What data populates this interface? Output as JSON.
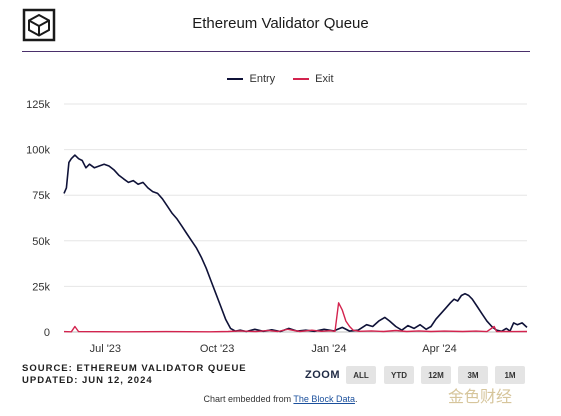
{
  "page": {
    "title": "Ethereum Validator Queue",
    "source_label": "SOURCE: ETHEREUM VALIDATOR QUEUE",
    "updated_label": "UPDATED: JUN 12, 2024",
    "zoom_label": "ZOOM",
    "zoom_buttons": [
      "ALL",
      "YTD",
      "12M",
      "3M",
      "1M"
    ],
    "footer_prefix": "Chart embedded from ",
    "footer_link": "The Block Data",
    "footer_suffix": ".",
    "watermark": "金色财经",
    "logo_icon": "the-block-cube-logo",
    "colors": {
      "entry": "#0f1238",
      "exit": "#d3234e",
      "accent": "#4a2f6b",
      "gridline": "#e6e6e6"
    }
  },
  "chart_data": {
    "type": "line",
    "title": "Ethereum Validator Queue",
    "xlabel": "",
    "ylabel": "",
    "ylim": [
      0,
      125000
    ],
    "yticks": [
      0,
      25000,
      50000,
      75000,
      100000,
      125000
    ],
    "ytick_labels": [
      "0",
      "25k",
      "50k",
      "75k",
      "100k",
      "125k"
    ],
    "xlim": [
      "2023-05-28",
      "2024-06-12"
    ],
    "xticks": [
      "2023-07-01",
      "2023-10-01",
      "2024-01-01",
      "2024-04-01"
    ],
    "xtick_labels": [
      "Jul '23",
      "Oct '23",
      "Jan '24",
      "Apr '24"
    ],
    "grid": true,
    "legend": "top-center",
    "series": [
      {
        "name": "Entry",
        "color": "#0f1238",
        "points": [
          [
            "2023-05-28",
            76000
          ],
          [
            "2023-05-30",
            79000
          ],
          [
            "2023-06-01",
            93000
          ],
          [
            "2023-06-03",
            95000
          ],
          [
            "2023-06-06",
            97000
          ],
          [
            "2023-06-09",
            95000
          ],
          [
            "2023-06-12",
            94000
          ],
          [
            "2023-06-15",
            90000
          ],
          [
            "2023-06-18",
            92000
          ],
          [
            "2023-06-22",
            90000
          ],
          [
            "2023-06-26",
            91000
          ],
          [
            "2023-06-30",
            92000
          ],
          [
            "2023-07-04",
            91000
          ],
          [
            "2023-07-08",
            89000
          ],
          [
            "2023-07-12",
            86000
          ],
          [
            "2023-07-16",
            84000
          ],
          [
            "2023-07-20",
            82000
          ],
          [
            "2023-07-24",
            83000
          ],
          [
            "2023-07-28",
            81000
          ],
          [
            "2023-08-01",
            82000
          ],
          [
            "2023-08-05",
            79000
          ],
          [
            "2023-08-09",
            77000
          ],
          [
            "2023-08-13",
            76000
          ],
          [
            "2023-08-17",
            73000
          ],
          [
            "2023-08-21",
            69000
          ],
          [
            "2023-08-25",
            65000
          ],
          [
            "2023-08-29",
            62000
          ],
          [
            "2023-09-02",
            58000
          ],
          [
            "2023-09-06",
            54000
          ],
          [
            "2023-09-10",
            50000
          ],
          [
            "2023-09-14",
            46000
          ],
          [
            "2023-09-18",
            41000
          ],
          [
            "2023-09-22",
            35000
          ],
          [
            "2023-09-26",
            28000
          ],
          [
            "2023-09-30",
            21000
          ],
          [
            "2023-10-04",
            14000
          ],
          [
            "2023-10-08",
            7000
          ],
          [
            "2023-10-12",
            2000
          ],
          [
            "2023-10-16",
            500
          ],
          [
            "2023-10-20",
            1000
          ],
          [
            "2023-10-25",
            300
          ],
          [
            "2023-11-01",
            1500
          ],
          [
            "2023-11-08",
            400
          ],
          [
            "2023-11-15",
            1200
          ],
          [
            "2023-11-22",
            300
          ],
          [
            "2023-11-29",
            2000
          ],
          [
            "2023-12-06",
            500
          ],
          [
            "2023-12-13",
            1000
          ],
          [
            "2023-12-20",
            400
          ],
          [
            "2023-12-28",
            1500
          ],
          [
            "2024-01-05",
            600
          ],
          [
            "2024-01-12",
            2500
          ],
          [
            "2024-01-18",
            500
          ],
          [
            "2024-01-25",
            1000
          ],
          [
            "2024-02-01",
            4000
          ],
          [
            "2024-02-06",
            3000
          ],
          [
            "2024-02-11",
            6000
          ],
          [
            "2024-02-16",
            8000
          ],
          [
            "2024-02-20",
            6000
          ],
          [
            "2024-02-25",
            3000
          ],
          [
            "2024-03-01",
            1000
          ],
          [
            "2024-03-06",
            3500
          ],
          [
            "2024-03-11",
            2000
          ],
          [
            "2024-03-16",
            4000
          ],
          [
            "2024-03-21",
            1500
          ],
          [
            "2024-03-25",
            3000
          ],
          [
            "2024-03-29",
            7000
          ],
          [
            "2024-04-02",
            10000
          ],
          [
            "2024-04-06",
            13000
          ],
          [
            "2024-04-10",
            16000
          ],
          [
            "2024-04-13",
            18000
          ],
          [
            "2024-04-16",
            17000
          ],
          [
            "2024-04-19",
            20000
          ],
          [
            "2024-04-22",
            21000
          ],
          [
            "2024-04-25",
            20000
          ],
          [
            "2024-04-28",
            18000
          ],
          [
            "2024-05-02",
            14000
          ],
          [
            "2024-05-06",
            10000
          ],
          [
            "2024-05-10",
            6000
          ],
          [
            "2024-05-14",
            3000
          ],
          [
            "2024-05-18",
            1000
          ],
          [
            "2024-05-22",
            400
          ],
          [
            "2024-05-26",
            2000
          ],
          [
            "2024-05-29",
            500
          ],
          [
            "2024-06-01",
            5000
          ],
          [
            "2024-06-04",
            4000
          ],
          [
            "2024-06-08",
            5000
          ],
          [
            "2024-06-12",
            2500
          ]
        ]
      },
      {
        "name": "Exit",
        "color": "#d3234e",
        "points": [
          [
            "2023-05-28",
            200
          ],
          [
            "2023-06-03",
            100
          ],
          [
            "2023-06-06",
            3000
          ],
          [
            "2023-06-09",
            200
          ],
          [
            "2023-07-15",
            100
          ],
          [
            "2023-08-20",
            200
          ],
          [
            "2023-09-25",
            100
          ],
          [
            "2023-10-10",
            300
          ],
          [
            "2023-10-20",
            600
          ],
          [
            "2023-11-02",
            200
          ],
          [
            "2023-11-12",
            900
          ],
          [
            "2023-11-20",
            300
          ],
          [
            "2023-11-28",
            1500
          ],
          [
            "2023-12-08",
            300
          ],
          [
            "2023-12-18",
            1000
          ],
          [
            "2023-12-26",
            400
          ],
          [
            "2024-01-02",
            700
          ],
          [
            "2024-01-06",
            400
          ],
          [
            "2024-01-09",
            16000
          ],
          [
            "2024-01-12",
            12000
          ],
          [
            "2024-01-15",
            6000
          ],
          [
            "2024-01-18",
            3000
          ],
          [
            "2024-01-21",
            1000
          ],
          [
            "2024-01-26",
            400
          ],
          [
            "2024-02-05",
            600
          ],
          [
            "2024-02-15",
            300
          ],
          [
            "2024-02-25",
            800
          ],
          [
            "2024-03-05",
            300
          ],
          [
            "2024-03-15",
            600
          ],
          [
            "2024-03-25",
            300
          ],
          [
            "2024-04-05",
            500
          ],
          [
            "2024-04-20",
            300
          ],
          [
            "2024-05-01",
            500
          ],
          [
            "2024-05-10",
            200
          ],
          [
            "2024-05-16",
            3000
          ],
          [
            "2024-05-18",
            200
          ],
          [
            "2024-05-26",
            300
          ],
          [
            "2024-06-01",
            200
          ],
          [
            "2024-06-12",
            300
          ]
        ]
      }
    ]
  }
}
